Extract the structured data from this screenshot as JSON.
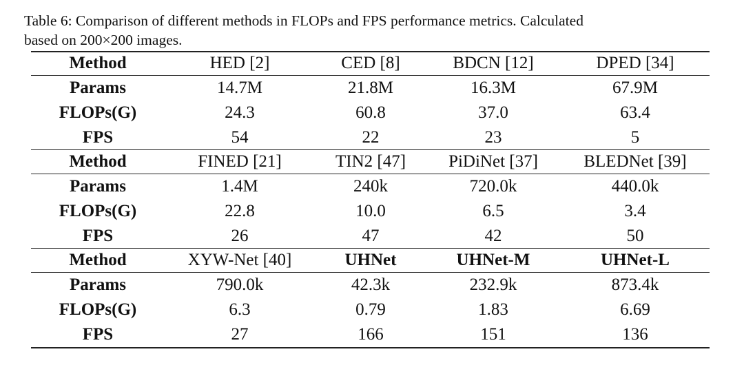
{
  "caption": [
    "Table 6: Comparison of different methods in FLOPs and FPS performance metrics. Calculated",
    "based on 200×200 images."
  ],
  "table": {
    "groups": [
      {
        "header": [
          "Method",
          "HED [2]",
          "CED [8]",
          "BDCN [12]",
          "DPED [34]"
        ],
        "rows": [
          [
            "Params",
            "14.7M",
            "21.8M",
            "16.3M",
            "67.9M"
          ],
          [
            "FLOPs(G)",
            "24.3",
            "60.8",
            "37.0",
            "63.4"
          ],
          [
            "FPS",
            "54",
            "22",
            "23",
            "5"
          ]
        ]
      },
      {
        "header": [
          "Method",
          "FINED [21]",
          "TIN2 [47]",
          "PiDiNet [37]",
          "BLEDNet [39]"
        ],
        "rows": [
          [
            "Params",
            "1.4M",
            "240k",
            "720.0k",
            "440.0k"
          ],
          [
            "FLOPs(G)",
            "22.8",
            "10.0",
            "6.5",
            "3.4"
          ],
          [
            "FPS",
            "26",
            "47",
            "42",
            "50"
          ]
        ]
      },
      {
        "header": [
          "Method",
          "XYW-Net [40]",
          "UHNet",
          "UHNet-M",
          "UHNet-L"
        ],
        "rows": [
          [
            "Params",
            "790.0k",
            "42.3k",
            "232.9k",
            "873.4k"
          ],
          [
            "FLOPs(G)",
            "6.3",
            "0.79",
            "1.83",
            "6.69"
          ],
          [
            "FPS",
            "27",
            "166",
            "151",
            "136"
          ]
        ]
      }
    ]
  }
}
